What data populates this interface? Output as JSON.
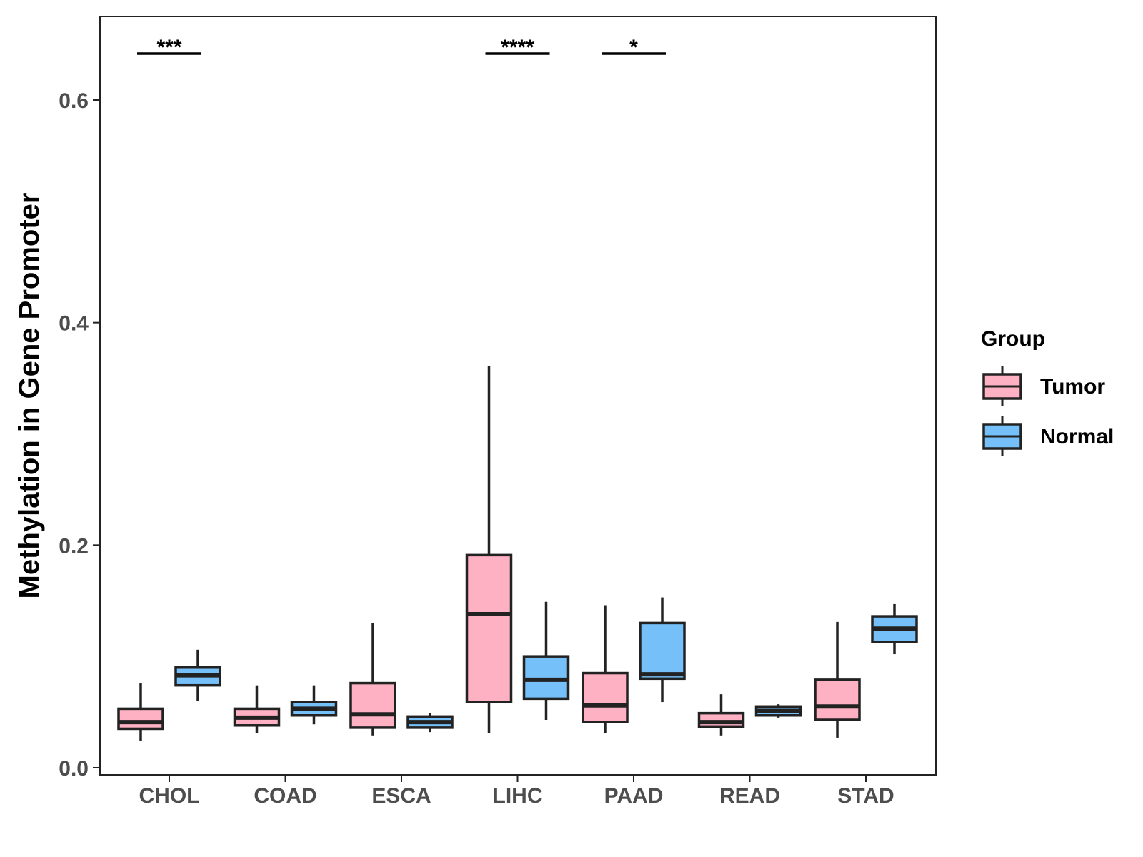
{
  "chart_data": {
    "type": "boxplot",
    "title": "",
    "xlabel": "",
    "ylabel": "Methylation in Gene Promoter",
    "ylim": [
      -0.008,
      0.68
    ],
    "yticks": [
      0.0,
      0.2,
      0.4,
      0.6
    ],
    "ytick_labels": [
      "0.0",
      "0.2",
      "0.4",
      "0.6"
    ],
    "grid": false,
    "legend_position": "right",
    "categories": [
      "CHOL",
      "COAD",
      "ESCA",
      "LIHC",
      "PAAD",
      "READ",
      "STAD"
    ],
    "series": [
      {
        "name": "Tumor",
        "color": "#FDB1C2",
        "boxes": [
          {
            "whisker_low": 0.024,
            "q1": 0.035,
            "median": 0.041,
            "q3": 0.053,
            "whisker_high": 0.076
          },
          {
            "whisker_low": 0.031,
            "q1": 0.038,
            "median": 0.045,
            "q3": 0.053,
            "whisker_high": 0.074
          },
          {
            "whisker_low": 0.029,
            "q1": 0.036,
            "median": 0.048,
            "q3": 0.076,
            "whisker_high": 0.13
          },
          {
            "whisker_low": 0.031,
            "q1": 0.059,
            "median": 0.138,
            "q3": 0.191,
            "whisker_high": 0.361
          },
          {
            "whisker_low": 0.031,
            "q1": 0.041,
            "median": 0.056,
            "q3": 0.085,
            "whisker_high": 0.146
          },
          {
            "whisker_low": 0.029,
            "q1": 0.037,
            "median": 0.041,
            "q3": 0.049,
            "whisker_high": 0.066
          },
          {
            "whisker_low": 0.027,
            "q1": 0.043,
            "median": 0.055,
            "q3": 0.079,
            "whisker_high": 0.131
          }
        ]
      },
      {
        "name": "Normal",
        "color": "#75C0F8",
        "boxes": [
          {
            "whisker_low": 0.06,
            "q1": 0.074,
            "median": 0.083,
            "q3": 0.09,
            "whisker_high": 0.106
          },
          {
            "whisker_low": 0.039,
            "q1": 0.047,
            "median": 0.053,
            "q3": 0.059,
            "whisker_high": 0.074
          },
          {
            "whisker_low": 0.032,
            "q1": 0.036,
            "median": 0.041,
            "q3": 0.046,
            "whisker_high": 0.049
          },
          {
            "whisker_low": 0.043,
            "q1": 0.062,
            "median": 0.079,
            "q3": 0.1,
            "whisker_high": 0.149
          },
          {
            "whisker_low": 0.059,
            "q1": 0.08,
            "median": 0.084,
            "q3": 0.13,
            "whisker_high": 0.153
          },
          {
            "whisker_low": 0.045,
            "q1": 0.047,
            "median": 0.051,
            "q3": 0.055,
            "whisker_high": 0.057
          },
          {
            "whisker_low": 0.102,
            "q1": 0.113,
            "median": 0.125,
            "q3": 0.136,
            "whisker_high": 0.147
          }
        ]
      }
    ],
    "annotations": [
      {
        "category": "CHOL",
        "label": "***"
      },
      {
        "category": "LIHC",
        "label": "****"
      },
      {
        "category": "PAAD",
        "label": "*"
      }
    ],
    "legend": {
      "title": "Group",
      "entries": [
        {
          "label": "Tumor",
          "color": "#FDB1C2"
        },
        {
          "label": "Normal",
          "color": "#75C0F8"
        }
      ]
    }
  }
}
